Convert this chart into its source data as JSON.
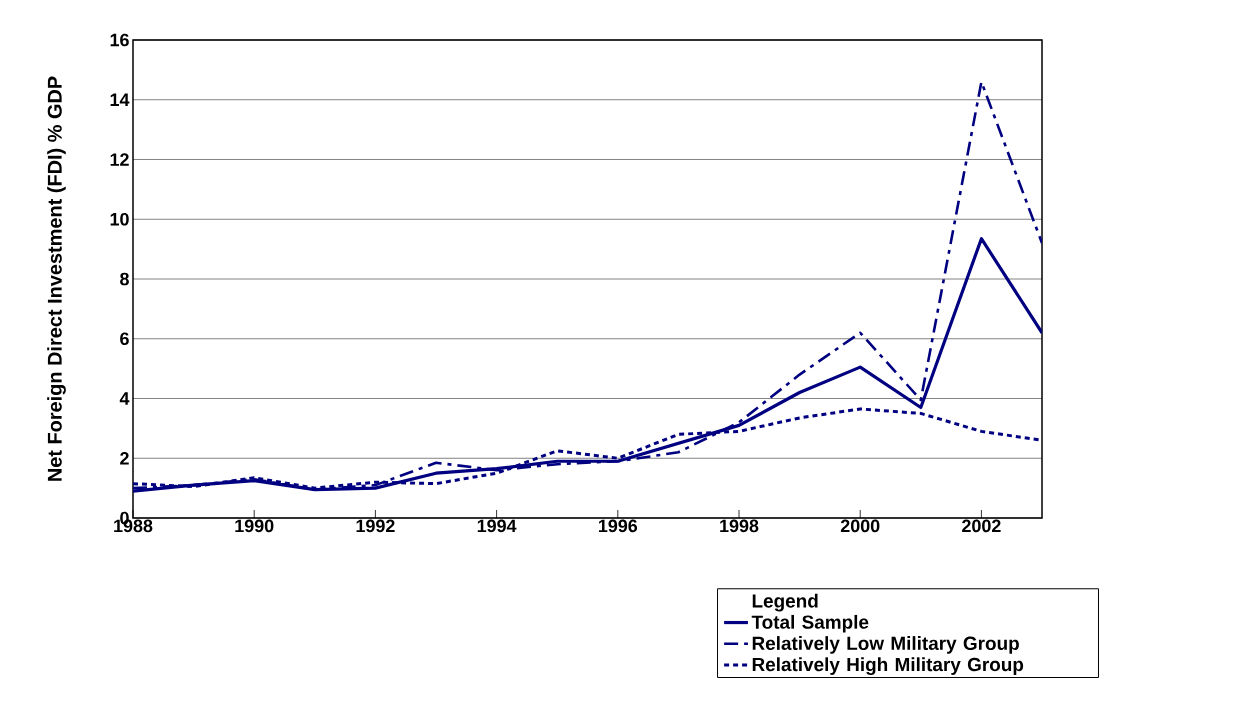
{
  "chart_data": {
    "type": "line",
    "ylabel": "Net Foreign Direct Investment (FDI) % GDP",
    "legend_title": "Legend",
    "x": [
      1988,
      1989,
      1990,
      1991,
      1992,
      1993,
      1994,
      1995,
      1996,
      1997,
      1998,
      1999,
      2000,
      2001,
      2002,
      2003
    ],
    "series": [
      {
        "name": "Total Sample",
        "color": "#000080",
        "line_style": "solid",
        "values": [
          0.9,
          1.1,
          1.25,
          0.95,
          1.0,
          1.5,
          1.65,
          1.9,
          1.9,
          2.5,
          3.1,
          4.2,
          5.05,
          3.7,
          9.35,
          6.2
        ]
      },
      {
        "name": "Relatively Low Military Group",
        "color": "#000080",
        "line_style": "dashdot",
        "values": [
          1.0,
          1.1,
          1.3,
          0.95,
          1.1,
          1.85,
          1.6,
          1.8,
          1.9,
          2.2,
          3.2,
          4.8,
          6.2,
          3.95,
          14.6,
          9.2
        ]
      },
      {
        "name": "Relatively High Military Group",
        "color": "#000080",
        "line_style": "dotted",
        "values": [
          1.15,
          1.05,
          1.35,
          1.0,
          1.2,
          1.15,
          1.5,
          2.25,
          2.0,
          2.8,
          2.9,
          3.35,
          3.65,
          3.5,
          2.9,
          2.6
        ]
      }
    ],
    "xlim": [
      1988,
      2003
    ],
    "xticks": [
      1988,
      1990,
      1992,
      1994,
      1996,
      1998,
      2000,
      2002
    ],
    "ylim": [
      0,
      16
    ],
    "yticks": [
      0,
      2,
      4,
      6,
      8,
      10,
      12,
      14,
      16
    ],
    "grid": "y",
    "legend": "bottom right",
    "marker": "none"
  }
}
